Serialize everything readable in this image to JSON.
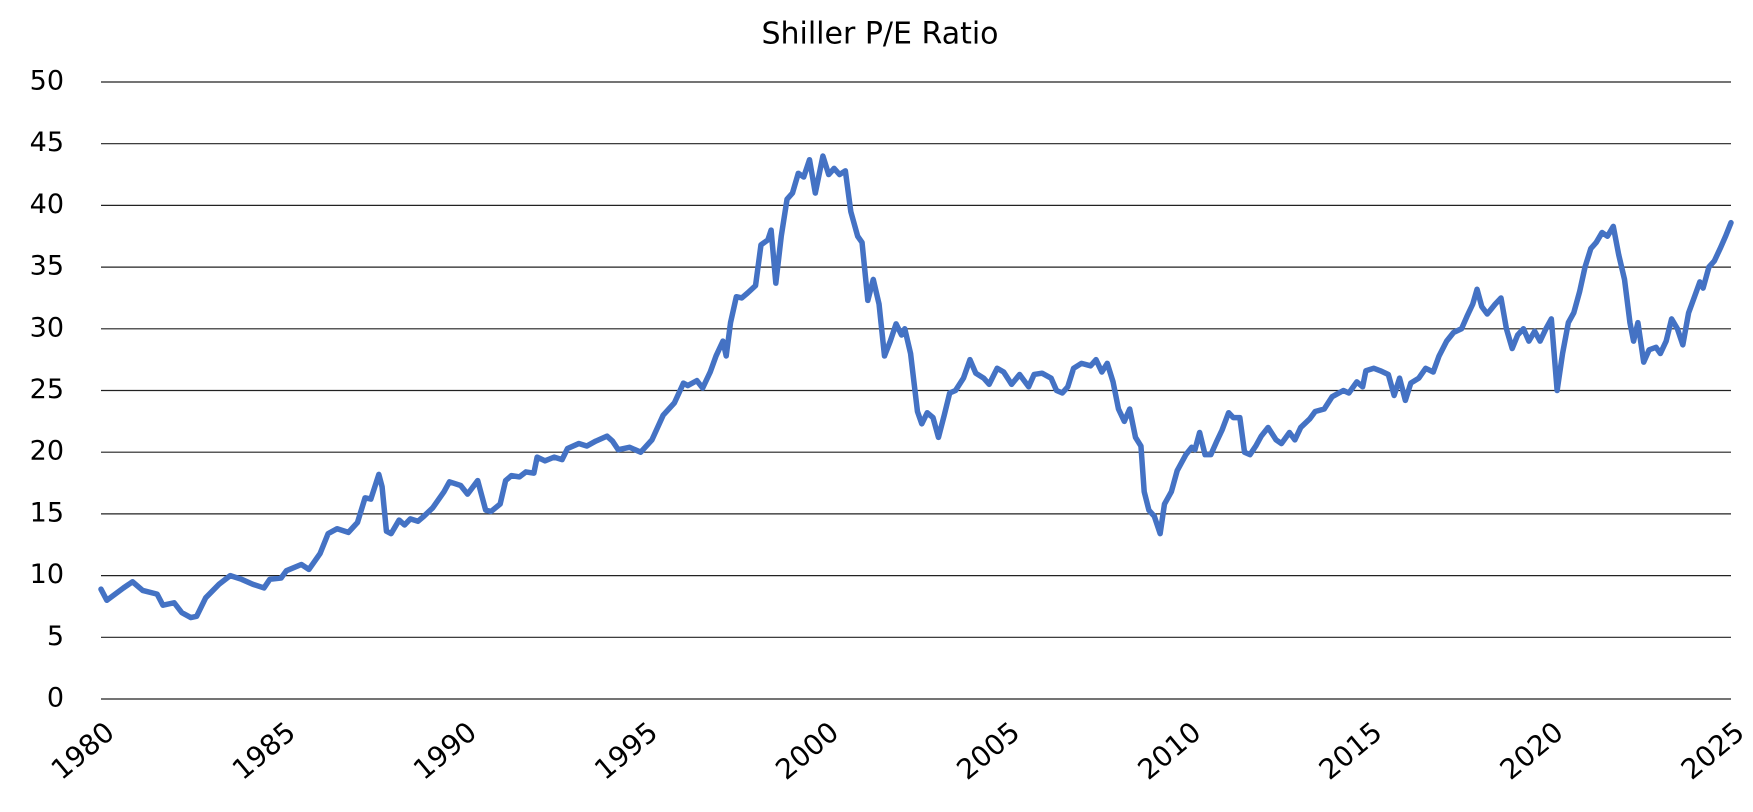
{
  "chart_data": {
    "type": "line",
    "title": "Shiller P/E Ratio",
    "color": "#4472c4",
    "grid": true,
    "xlim": [
      1980,
      2025
    ],
    "xticks": [
      1980,
      1985,
      1990,
      1995,
      2000,
      2005,
      2010,
      2015,
      2020,
      2025
    ],
    "ylim": [
      0,
      50
    ],
    "yticks": [
      0,
      5,
      10,
      15,
      20,
      25,
      30,
      35,
      40,
      45,
      50
    ],
    "x": [
      1980.0,
      1980.16,
      1980.62,
      1980.87,
      1981.15,
      1981.55,
      1981.71,
      1982.02,
      1982.23,
      1982.48,
      1982.64,
      1982.89,
      1983.26,
      1983.57,
      1983.88,
      1984.19,
      1984.5,
      1984.66,
      1984.97,
      1985.12,
      1985.53,
      1985.74,
      1986.05,
      1986.27,
      1986.52,
      1986.83,
      1987.08,
      1987.29,
      1987.45,
      1987.67,
      1987.76,
      1987.88,
      1988.01,
      1988.23,
      1988.38,
      1988.54,
      1988.75,
      1988.91,
      1989.16,
      1989.47,
      1989.62,
      1989.93,
      1990.12,
      1990.4,
      1990.62,
      1990.77,
      1991.02,
      1991.17,
      1991.33,
      1991.55,
      1991.73,
      1991.95,
      1992.04,
      1992.26,
      1992.51,
      1992.73,
      1992.88,
      1993.19,
      1993.41,
      1993.66,
      1993.97,
      1994.12,
      1994.28,
      1994.59,
      1994.9,
      1995.21,
      1995.52,
      1995.83,
      1996.08,
      1996.2,
      1996.45,
      1996.61,
      1996.82,
      1996.98,
      1997.17,
      1997.26,
      1997.38,
      1997.54,
      1997.69,
      1997.85,
      1998.07,
      1998.22,
      1998.41,
      1998.5,
      1998.63,
      1998.78,
      1998.94,
      1999.09,
      1999.25,
      1999.4,
      1999.56,
      1999.72,
      1999.93,
      2000.09,
      2000.24,
      2000.39,
      2000.55,
      2000.7,
      2000.89,
      2001.01,
      2001.17,
      2001.32,
      2001.48,
      2001.63,
      2001.79,
      2001.95,
      2002.1,
      2002.19,
      2002.35,
      2002.54,
      2002.66,
      2002.81,
      2002.97,
      2003.12,
      2003.28,
      2003.43,
      2003.59,
      2003.81,
      2003.99,
      2004.15,
      2004.37,
      2004.52,
      2004.74,
      2004.92,
      2005.14,
      2005.36,
      2005.61,
      2005.76,
      2005.98,
      2006.23,
      2006.38,
      2006.54,
      2006.69,
      2006.85,
      2007.07,
      2007.32,
      2007.47,
      2007.63,
      2007.78,
      2007.94,
      2008.09,
      2008.25,
      2008.4,
      2008.56,
      2008.71,
      2008.8,
      2008.93,
      2009.08,
      2009.24,
      2009.36,
      2009.55,
      2009.71,
      2009.95,
      2010.11,
      2010.2,
      2010.33,
      2010.48,
      2010.64,
      2010.79,
      2010.95,
      2011.13,
      2011.26,
      2011.44,
      2011.57,
      2011.72,
      2011.88,
      2012.03,
      2012.22,
      2012.44,
      2012.59,
      2012.81,
      2012.96,
      2013.12,
      2013.37,
      2013.52,
      2013.77,
      2013.99,
      2014.3,
      2014.45,
      2014.67,
      2014.83,
      2014.92,
      2015.14,
      2015.32,
      2015.54,
      2015.7,
      2015.85,
      2016.01,
      2016.16,
      2016.38,
      2016.57,
      2016.78,
      2016.94,
      2017.15,
      2017.34,
      2017.56,
      2017.71,
      2017.87,
      2017.99,
      2018.12,
      2018.27,
      2018.49,
      2018.65,
      2018.8,
      2018.96,
      2019.11,
      2019.27,
      2019.42,
      2019.58,
      2019.73,
      2019.89,
      2020.04,
      2020.2,
      2020.35,
      2020.51,
      2020.66,
      2020.82,
      2020.97,
      2021.13,
      2021.28,
      2021.44,
      2021.59,
      2021.75,
      2021.9,
      2022.06,
      2022.21,
      2022.31,
      2022.43,
      2022.59,
      2022.74,
      2022.93,
      2023.05,
      2023.21,
      2023.36,
      2023.52,
      2023.67,
      2023.83,
      2023.98,
      2024.14,
      2024.23,
      2024.39,
      2024.54,
      2024.7,
      2024.85,
      2025.0
    ],
    "values": [
      8.9,
      8.0,
      9.0,
      9.5,
      8.8,
      8.5,
      7.6,
      7.8,
      7.0,
      6.6,
      6.7,
      8.2,
      9.3,
      10.0,
      9.7,
      9.3,
      9.0,
      9.7,
      9.8,
      10.4,
      10.9,
      10.5,
      11.8,
      13.4,
      13.8,
      13.5,
      14.3,
      16.3,
      16.2,
      18.2,
      17.2,
      13.6,
      13.4,
      14.5,
      14.1,
      14.6,
      14.4,
      14.8,
      15.5,
      16.8,
      17.6,
      17.3,
      16.6,
      17.7,
      15.3,
      15.2,
      15.8,
      17.7,
      18.1,
      18.0,
      18.4,
      18.3,
      19.6,
      19.3,
      19.6,
      19.4,
      20.3,
      20.7,
      20.5,
      20.9,
      21.3,
      20.9,
      20.2,
      20.4,
      20.0,
      21.0,
      23.0,
      24.0,
      25.6,
      25.4,
      25.8,
      25.2,
      26.5,
      27.8,
      29.0,
      27.8,
      30.5,
      32.6,
      32.5,
      32.9,
      33.5,
      36.8,
      37.2,
      38.0,
      33.7,
      37.5,
      40.5,
      41.0,
      42.6,
      42.3,
      43.7,
      41.0,
      44.0,
      42.5,
      43.0,
      42.5,
      42.8,
      39.5,
      37.5,
      37.0,
      32.3,
      34.0,
      32.0,
      27.8,
      29.0,
      30.4,
      29.5,
      30.0,
      28.0,
      23.3,
      22.3,
      23.2,
      22.8,
      21.2,
      23.0,
      24.8,
      25.0,
      26.0,
      27.5,
      26.4,
      26.0,
      25.5,
      26.8,
      26.5,
      25.5,
      26.3,
      25.3,
      26.3,
      26.4,
      26.0,
      25.0,
      24.8,
      25.3,
      26.8,
      27.2,
      27.0,
      27.5,
      26.5,
      27.2,
      25.7,
      23.5,
      22.5,
      23.5,
      21.2,
      20.5,
      16.8,
      15.3,
      14.8,
      13.4,
      15.8,
      16.8,
      18.5,
      19.8,
      20.4,
      20.2,
      21.6,
      19.8,
      19.8,
      20.8,
      21.8,
      23.2,
      22.8,
      22.8,
      20.0,
      19.8,
      20.5,
      21.3,
      22.0,
      21.0,
      20.7,
      21.6,
      21.0,
      22.0,
      22.7,
      23.3,
      23.5,
      24.5,
      25.0,
      24.8,
      25.7,
      25.3,
      26.6,
      26.8,
      26.6,
      26.3,
      24.6,
      26.0,
      24.2,
      25.6,
      26.0,
      26.8,
      26.5,
      27.8,
      29.0,
      29.7,
      30.0,
      31.0,
      32.0,
      33.2,
      31.8,
      31.2,
      32.0,
      32.5,
      30.0,
      28.4,
      29.5,
      30.0,
      29.0,
      29.8,
      29.0,
      30.0,
      30.8,
      25.0,
      28.0,
      30.5,
      31.3,
      33.0,
      35.0,
      36.5,
      37.0,
      37.8,
      37.5,
      38.3,
      36.0,
      34.0,
      30.5,
      29.0,
      30.5,
      27.3,
      28.3,
      28.5,
      28.0,
      29.0,
      30.8,
      30.0,
      28.7,
      31.3,
      32.5,
      33.8,
      33.3,
      35.0,
      35.5,
      36.5,
      37.5,
      38.6
    ]
  }
}
